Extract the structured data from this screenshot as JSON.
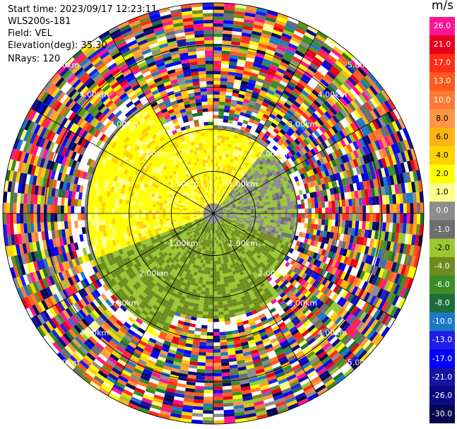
{
  "info": {
    "start_time": "Start time: 2023/09/17 12:23:11",
    "station": "WLS200s-181",
    "field": "Field: VEL",
    "elevation": "Elevation(deg): 35.30",
    "nrays": "NRays: 120"
  },
  "colorbar": {
    "unit": "m/s",
    "levels": [
      {
        "label": "26.0",
        "color": "#ff1493"
      },
      {
        "label": "21.0",
        "color": "#e8001a"
      },
      {
        "label": "17.0",
        "color": "#ff2e18"
      },
      {
        "label": "13.0",
        "color": "#ff5a1e"
      },
      {
        "label": "10.0",
        "color": "#ff7a32"
      },
      {
        "label": "8.0",
        "color": "#ff9646"
      },
      {
        "label": "6.0",
        "color": "#ffb414"
      },
      {
        "label": "4.0",
        "color": "#ffd200"
      },
      {
        "label": "2.0",
        "color": "#ffff00"
      },
      {
        "label": "1.0",
        "color": "#ffff8c"
      },
      {
        "label": "0.0",
        "color": "#8c8c8c"
      },
      {
        "label": "-1.0",
        "color": "#6e6e6e"
      },
      {
        "label": "-2.0",
        "color": "#9ac832"
      },
      {
        "label": "-4.0",
        "color": "#6e8c1e"
      },
      {
        "label": "-6.0",
        "color": "#3c8c28"
      },
      {
        "label": "-8.0",
        "color": "#1e6e3c"
      },
      {
        "label": "-10.0",
        "color": "#1e78c8"
      },
      {
        "label": "-13.0",
        "color": "#1e1ee6"
      },
      {
        "label": "-17.0",
        "color": "#0000ff"
      },
      {
        "label": "-21.0",
        "color": "#1414a0"
      },
      {
        "label": "-26.0",
        "color": "#0a0a82"
      },
      {
        "label": "-30.0",
        "color": "#050550"
      }
    ]
  },
  "chart_data": {
    "type": "heatmap",
    "nrays": 120,
    "range_rings_km": [
      1.0,
      2.0,
      3.0,
      4.0,
      5.0
    ],
    "ring_labels": [
      "1.00km",
      "2.00km",
      "3.00km",
      "4.00km",
      "5.00km"
    ],
    "spoke_count": 12
  }
}
